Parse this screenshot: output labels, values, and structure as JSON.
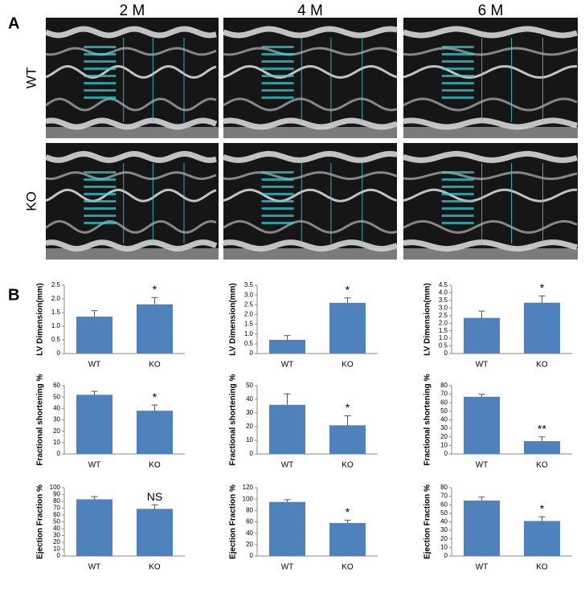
{
  "figure": {
    "panel_a_label": "A",
    "panel_b_label": "B",
    "columns": [
      "2 M",
      "4 M",
      "6 M"
    ],
    "rows": [
      "WT",
      "KO"
    ]
  },
  "chart_data": [
    {
      "type": "bar",
      "ylabel": "LV Dimension(mm)",
      "categories": [
        "WT",
        "KO"
      ],
      "values": [
        1.35,
        1.8
      ],
      "errors": [
        0.22,
        0.25
      ],
      "annotations": [
        null,
        "*"
      ],
      "color": "#4f81bd",
      "ylim": [
        0,
        2.5
      ],
      "yticks": [
        0,
        0.5,
        {
          "value": 1,
          "label": "1.0"
        },
        1.5,
        {
          "value": 2,
          "label": "2.0"
        },
        2.5
      ]
    },
    {
      "type": "bar",
      "ylabel": "LV Dimension(mm)",
      "categories": [
        "WT",
        "KO"
      ],
      "values": [
        0.7,
        2.6
      ],
      "errors": [
        0.22,
        0.25
      ],
      "annotations": [
        null,
        "*"
      ],
      "color": "#4f81bd",
      "ylim": [
        0,
        3.5
      ],
      "yticks": [
        0,
        0.5,
        {
          "value": 1,
          "label": "1.0"
        },
        1.5,
        {
          "value": 2,
          "label": "2.0"
        },
        2.5,
        {
          "value": 3,
          "label": "3.0"
        },
        3.5
      ]
    },
    {
      "type": "bar",
      "ylabel": "LV Dimension(mm)",
      "categories": [
        "WT",
        "KO"
      ],
      "values": [
        2.35,
        3.35
      ],
      "errors": [
        0.45,
        0.45
      ],
      "annotations": [
        null,
        "*"
      ],
      "color": "#4f81bd",
      "ylim": [
        0,
        4.5
      ],
      "yticks": [
        0,
        0.5,
        {
          "value": 1,
          "label": "1.0"
        },
        1.5,
        {
          "value": 2,
          "label": "2.0"
        },
        2.5,
        {
          "value": 3,
          "label": "3.0"
        },
        3.5,
        {
          "value": 4,
          "label": "4.0"
        },
        4.5
      ]
    },
    {
      "type": "bar",
      "ylabel": "Fractional shortening %",
      "categories": [
        "WT",
        "KO"
      ],
      "values": [
        52,
        38
      ],
      "errors": [
        3,
        5
      ],
      "annotations": [
        null,
        "*"
      ],
      "color": "#4f81bd",
      "ylim": [
        0,
        60
      ],
      "yticks": [
        0,
        10,
        20,
        30,
        40,
        50,
        60
      ]
    },
    {
      "type": "bar",
      "ylabel": "Fractional shortening %",
      "categories": [
        "WT",
        "KO"
      ],
      "values": [
        36,
        21
      ],
      "errors": [
        8,
        7
      ],
      "annotations": [
        null,
        "*"
      ],
      "color": "#4f81bd",
      "ylim": [
        0,
        50
      ],
      "yticks": [
        0,
        10,
        20,
        30,
        40,
        50
      ]
    },
    {
      "type": "bar",
      "ylabel": "Fractional shortening %",
      "categories": [
        "WT",
        "KO"
      ],
      "values": [
        67,
        15
      ],
      "errors": [
        3,
        5
      ],
      "annotations": [
        null,
        "**"
      ],
      "color": "#4f81bd",
      "ylim": [
        0,
        80
      ],
      "yticks": [
        0,
        10,
        20,
        30,
        40,
        50,
        60,
        70,
        80
      ]
    },
    {
      "type": "bar",
      "ylabel": "Ejection Fraction %",
      "categories": [
        "WT",
        "KO"
      ],
      "values": [
        83,
        69
      ],
      "errors": [
        4,
        6
      ],
      "annotations": [
        null,
        "NS"
      ],
      "color": "#4f81bd",
      "ylim": [
        0,
        100
      ],
      "yticks": [
        0,
        10,
        20,
        30,
        40,
        50,
        60,
        70,
        80,
        90,
        100
      ]
    },
    {
      "type": "bar",
      "ylabel": "Ejection Fraction %",
      "categories": [
        "WT",
        "KO"
      ],
      "values": [
        95,
        58
      ],
      "errors": [
        4,
        5
      ],
      "annotations": [
        null,
        "*"
      ],
      "color": "#4f81bd",
      "ylim": [
        0,
        120
      ],
      "yticks": [
        0,
        20,
        40,
        60,
        80,
        100,
        120
      ]
    },
    {
      "type": "bar",
      "ylabel": "Ejection Fraction %",
      "categories": [
        "WT",
        "KO"
      ],
      "values": [
        65,
        41
      ],
      "errors": [
        4,
        5
      ],
      "annotations": [
        null,
        "*"
      ],
      "color": "#4f81bd",
      "ylim": [
        0,
        80
      ],
      "yticks": [
        0,
        10,
        20,
        30,
        40,
        50,
        60,
        70,
        80
      ]
    }
  ]
}
